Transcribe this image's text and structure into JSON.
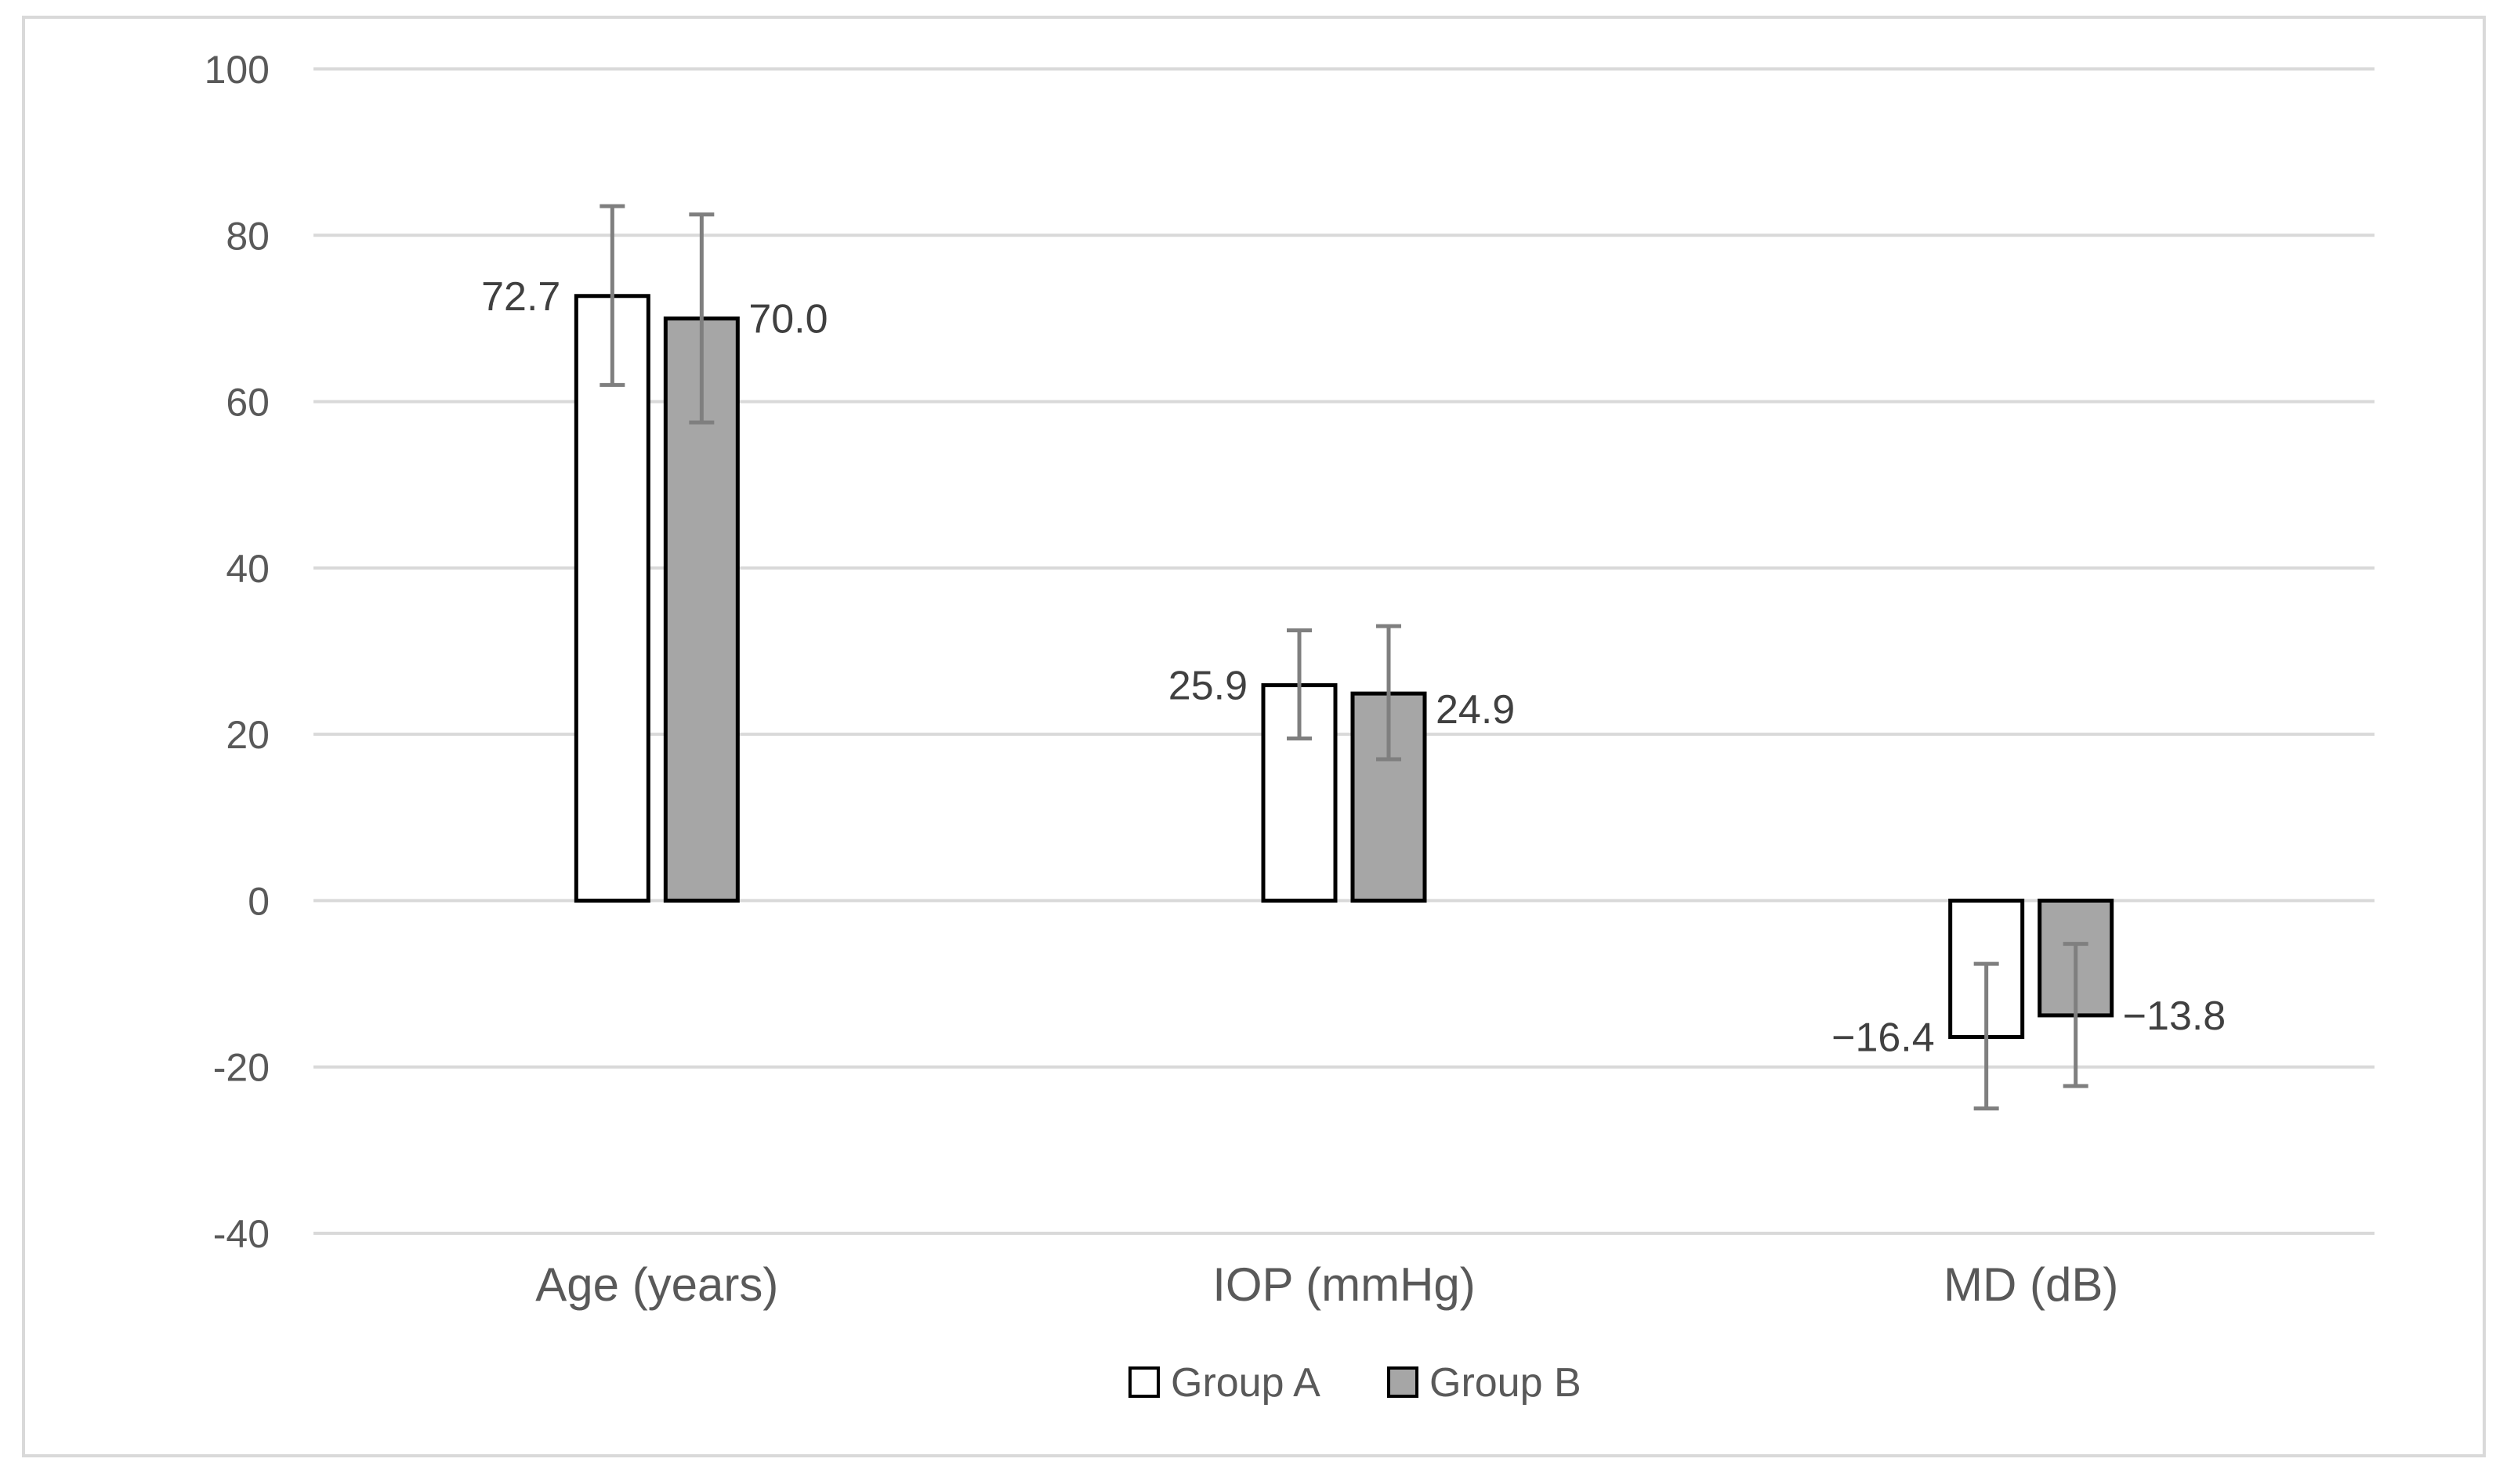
{
  "chart_data": {
    "type": "bar",
    "categories": [
      "Age (years)",
      "IOP (mmHg)",
      "MD (dB)"
    ],
    "series": [
      {
        "name": "Group A",
        "color": "#ffffff",
        "values": [
          72.7,
          25.9,
          -16.4
        ],
        "error_low": [
          62.0,
          19.5,
          -25.0
        ],
        "error_high": [
          83.5,
          32.5,
          -7.6
        ],
        "labels": [
          "72.7",
          "25.9",
          "−16.4"
        ]
      },
      {
        "name": "Group B",
        "color": "#a6a6a6",
        "values": [
          70.0,
          24.9,
          -13.8
        ],
        "error_low": [
          57.5,
          17.0,
          -22.3
        ],
        "error_high": [
          82.5,
          33.0,
          -5.2
        ],
        "labels": [
          "70.0",
          "24.9",
          "−13.8"
        ]
      }
    ],
    "yticks": [
      "100",
      "80",
      "60",
      "40",
      "20",
      "0",
      "-20",
      "-40"
    ],
    "ylim": [
      -40,
      100
    ],
    "ytick_step": 20,
    "grid": true,
    "legend_position": "bottom",
    "colors": {
      "gridline": "#d9d9d9",
      "errorbar": "#7f7f7f",
      "bar_edge": "#000000",
      "text": "#595959"
    }
  }
}
